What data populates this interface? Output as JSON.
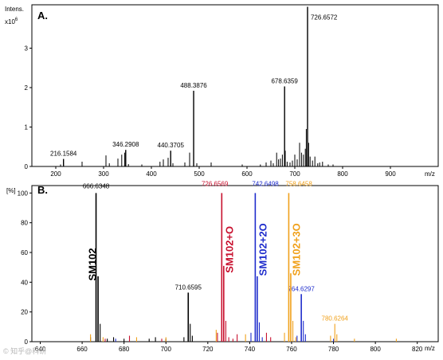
{
  "chart_data": [
    {
      "type": "bar",
      "panel": "A.",
      "ylabel": "Intens.",
      "yscale_label": "x10",
      "yscale_exp": "6",
      "xlabel": "m/z",
      "xlim": [
        150,
        1000
      ],
      "ylim": [
        0,
        4.1
      ],
      "x_ticks": [
        200,
        300,
        400,
        500,
        600,
        700,
        800,
        900
      ],
      "y_ticks": [
        0,
        1,
        2,
        3
      ],
      "labeled_peaks": [
        {
          "x": 216.1584,
          "y": 0.19,
          "label": "216.1584"
        },
        {
          "x": 346.2908,
          "y": 0.42,
          "label": "346.2908"
        },
        {
          "x": 440.3705,
          "y": 0.4,
          "label": "440.3705"
        },
        {
          "x": 488.3876,
          "y": 1.92,
          "label": "488.3876"
        },
        {
          "x": 678.6359,
          "y": 2.03,
          "label": "678.6359"
        },
        {
          "x": 726.6572,
          "y": 4.05,
          "label": "726.6572"
        }
      ],
      "minor_peaks": [
        [
          210,
          0.05
        ],
        [
          255,
          0.12
        ],
        [
          305,
          0.28
        ],
        [
          312,
          0.08
        ],
        [
          330,
          0.2
        ],
        [
          338,
          0.3
        ],
        [
          344,
          0.35
        ],
        [
          352,
          0.06
        ],
        [
          380,
          0.05
        ],
        [
          418,
          0.12
        ],
        [
          425,
          0.18
        ],
        [
          435,
          0.22
        ],
        [
          445,
          0.08
        ],
        [
          470,
          0.1
        ],
        [
          480,
          0.35
        ],
        [
          495,
          0.08
        ],
        [
          525,
          0.1
        ],
        [
          590,
          0.05
        ],
        [
          628,
          0.05
        ],
        [
          640,
          0.1
        ],
        [
          650,
          0.15
        ],
        [
          655,
          0.08
        ],
        [
          662,
          0.35
        ],
        [
          666,
          0.18
        ],
        [
          670,
          0.2
        ],
        [
          674,
          0.3
        ],
        [
          680,
          0.4
        ],
        [
          684,
          0.12
        ],
        [
          690,
          0.1
        ],
        [
          695,
          0.15
        ],
        [
          700,
          0.3
        ],
        [
          705,
          0.18
        ],
        [
          710,
          0.6
        ],
        [
          714,
          0.35
        ],
        [
          718,
          0.3
        ],
        [
          722,
          0.45
        ],
        [
          724,
          0.95
        ],
        [
          729,
          0.6
        ],
        [
          732,
          0.25
        ],
        [
          737,
          0.15
        ],
        [
          742,
          0.25
        ],
        [
          748,
          0.08
        ],
        [
          752,
          0.1
        ],
        [
          758,
          0.12
        ],
        [
          770,
          0.05
        ],
        [
          780,
          0.05
        ]
      ]
    },
    {
      "type": "bar",
      "panel": "B.",
      "ylabel": "[%]",
      "xlabel": "m/z",
      "xlim": [
        636,
        830
      ],
      "ylim": [
        0,
        105
      ],
      "x_ticks": [
        640,
        660,
        680,
        700,
        720,
        740,
        760,
        780,
        800,
        820
      ],
      "y_ticks": [
        0,
        20,
        40,
        60,
        80,
        100
      ],
      "series": [
        {
          "name": "SM102",
          "color": "#000000",
          "peaks": [
            [
              664,
              3
            ],
            [
              666.6348,
              100
            ],
            [
              667.6,
              44
            ],
            [
              668.6,
              12
            ],
            [
              672,
              2
            ],
            [
              675,
              3
            ],
            [
              680,
              2
            ],
            [
              692,
              2
            ],
            [
              695,
              3
            ],
            [
              700,
              2
            ],
            [
              708.6,
              3
            ],
            [
              710.6595,
              33
            ],
            [
              711.6,
              12
            ],
            [
              712.6,
              4
            ]
          ],
          "labels": [
            {
              "x": 666.6348,
              "y": 100,
              "label": "666.6348"
            },
            {
              "x": 710.6595,
              "y": 33,
              "label": "710.6595"
            }
          ]
        },
        {
          "name": "SM102+O",
          "color": "#c8102e",
          "peaks": [
            [
              671,
              2
            ],
            [
              682.6,
              4
            ],
            [
              698,
              2
            ],
            [
              724.6,
              6
            ],
            [
              726.6569,
              100
            ],
            [
              727.6,
              51
            ],
            [
              728.6,
              14
            ],
            [
              730,
              3
            ],
            [
              732,
              2
            ],
            [
              734,
              5
            ],
            [
              748,
              6
            ],
            [
              750,
              3
            ]
          ],
          "labels": [
            {
              "x": 726.6569,
              "y": 100,
              "label": "726.6569"
            }
          ]
        },
        {
          "name": "SM102+2O",
          "color": "#1f2dcc",
          "peaks": [
            [
              676,
              2
            ],
            [
              740.6,
              6
            ],
            [
              742.6498,
              100
            ],
            [
              743.6,
              44
            ],
            [
              744.6,
              13
            ],
            [
              746,
              3
            ],
            [
              762.6,
              4
            ],
            [
              764.6297,
              32
            ],
            [
              765.6,
              14
            ],
            [
              766.6,
              5
            ],
            [
              780,
              2
            ]
          ],
          "labels": [
            {
              "x": 742.6498,
              "y": 100,
              "label": "742.6498"
            },
            {
              "x": 764.6297,
              "y": 32,
              "label": "764.6297"
            }
          ]
        },
        {
          "name": "SM102+3O",
          "color": "#f0a11c",
          "peaks": [
            [
              664,
              5
            ],
            [
              670,
              3
            ],
            [
              686,
              3
            ],
            [
              700,
              3
            ],
            [
              724,
              8
            ],
            [
              738,
              5
            ],
            [
              756.6,
              6
            ],
            [
              758.6458,
              100
            ],
            [
              759.6,
              46
            ],
            [
              760.6,
              14
            ],
            [
              762,
              3
            ],
            [
              778.6,
              4
            ],
            [
              780.6264,
              12
            ],
            [
              781.6,
              5
            ],
            [
              790,
              2
            ],
            [
              810,
              2
            ]
          ],
          "labels": [
            {
              "x": 758.6458,
              "y": 100,
              "label": "758.6458"
            },
            {
              "x": 780.6264,
              "y": 12,
              "label": "780.6264"
            }
          ]
        }
      ]
    }
  ],
  "watermark": "© 知乎@科研"
}
